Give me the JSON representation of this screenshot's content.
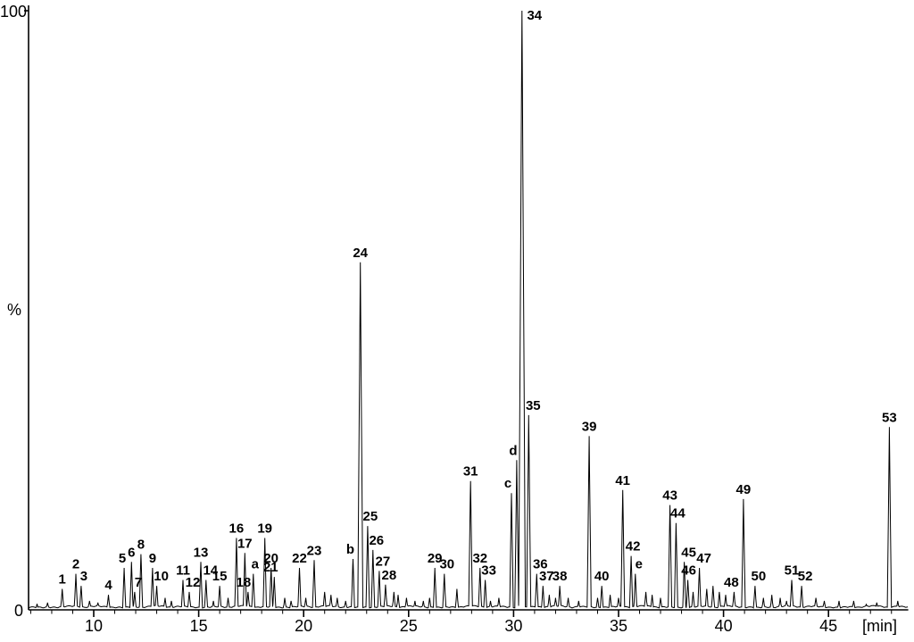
{
  "chart_data": {
    "type": "line",
    "subtype": "chromatogram",
    "title": "",
    "background_color": "#ffffff",
    "line_color": "#000000",
    "x_unit_label": "[min]",
    "x_ticks": [
      10,
      15,
      20,
      25,
      30,
      35,
      40,
      45
    ],
    "x_minor_tick_interval": 1,
    "x_range": [
      6.9,
      48.8
    ],
    "y_range": [
      0,
      100
    ],
    "y_axis_labels": {
      "max": "100",
      "unit": "%",
      "min": "0"
    },
    "legend": "none",
    "grid": "off",
    "peaks": [
      {
        "label": "1",
        "rt": 8.5,
        "h": 3.5
      },
      {
        "label": "2",
        "rt": 9.15,
        "h": 6
      },
      {
        "label": "3",
        "rt": 9.4,
        "h": 4,
        "dx": 3
      },
      {
        "label": "4",
        "rt": 10.7,
        "h": 2.5
      },
      {
        "label": "5",
        "rt": 11.45,
        "h": 7,
        "dx": -2
      },
      {
        "label": "6",
        "rt": 11.8,
        "h": 8
      },
      {
        "label": "7",
        "rt": 11.95,
        "h": 3,
        "dx": 4
      },
      {
        "label": "8",
        "rt": 12.25,
        "h": 9.3
      },
      {
        "label": "9",
        "rt": 12.8,
        "h": 7
      },
      {
        "label": "10",
        "rt": 13.0,
        "h": 4,
        "dx": 5
      },
      {
        "label": "11",
        "rt": 14.25,
        "h": 5
      },
      {
        "label": "12",
        "rt": 14.55,
        "h": 3,
        "dx": 4
      },
      {
        "label": "13",
        "rt": 15.1,
        "h": 8
      },
      {
        "label": "14",
        "rt": 15.35,
        "h": 5,
        "dx": 5
      },
      {
        "label": "15",
        "rt": 16.0,
        "h": 4
      },
      {
        "label": "16",
        "rt": 16.8,
        "h": 12
      },
      {
        "label": "17",
        "rt": 17.2,
        "h": 9.5
      },
      {
        "label": "18",
        "rt": 17.35,
        "h": 3,
        "dx": -5
      },
      {
        "label": "a",
        "rt": 17.6,
        "h": 6,
        "dx": 2
      },
      {
        "label": "19",
        "rt": 18.15,
        "h": 12
      },
      {
        "label": "20",
        "rt": 18.45,
        "h": 7
      },
      {
        "label": "21",
        "rt": 18.6,
        "h": 5.5,
        "dx": -4
      },
      {
        "label": "22",
        "rt": 19.8,
        "h": 7
      },
      {
        "label": "23",
        "rt": 20.5,
        "h": 8.3
      },
      {
        "label": "b",
        "rt": 22.35,
        "h": 8.5,
        "dx": -3
      },
      {
        "label": "24",
        "rt": 22.7,
        "h": 58
      },
      {
        "label": "25",
        "rt": 23.05,
        "h": 14,
        "dx": 3
      },
      {
        "label": "26",
        "rt": 23.3,
        "h": 10,
        "dx": 4
      },
      {
        "label": "27",
        "rt": 23.6,
        "h": 6.5,
        "dx": 4
      },
      {
        "label": "28",
        "rt": 23.9,
        "h": 4.2,
        "dx": 4
      },
      {
        "label": "29",
        "rt": 26.25,
        "h": 7
      },
      {
        "label": "30",
        "rt": 26.7,
        "h": 6,
        "dx": 3
      },
      {
        "label": "31",
        "rt": 27.95,
        "h": 21.5
      },
      {
        "label": "32",
        "rt": 28.4,
        "h": 7
      },
      {
        "label": "33",
        "rt": 28.65,
        "h": 5,
        "dx": 4
      },
      {
        "label": "c",
        "rt": 29.9,
        "h": 19.5,
        "dx": -4
      },
      {
        "label": "d",
        "rt": 30.15,
        "h": 25,
        "dx": -4
      },
      {
        "label": "34",
        "rt": 30.4,
        "h": 100,
        "dx": 14,
        "dy": 16
      },
      {
        "label": "35",
        "rt": 30.72,
        "h": 32.5,
        "dx": 5
      },
      {
        "label": "36",
        "rt": 31.1,
        "h": 6,
        "dx": 4
      },
      {
        "label": "37",
        "rt": 31.4,
        "h": 4,
        "dx": 4
      },
      {
        "label": "38",
        "rt": 32.2,
        "h": 4
      },
      {
        "label": "39",
        "rt": 33.6,
        "h": 29
      },
      {
        "label": "40",
        "rt": 34.2,
        "h": 4
      },
      {
        "label": "41",
        "rt": 35.2,
        "h": 20
      },
      {
        "label": "42",
        "rt": 35.6,
        "h": 9,
        "dx": 2
      },
      {
        "label": "e",
        "rt": 35.8,
        "h": 6,
        "dx": 4
      },
      {
        "label": "43",
        "rt": 37.45,
        "h": 17.5
      },
      {
        "label": "44",
        "rt": 37.74,
        "h": 14.5,
        "dx": 2
      },
      {
        "label": "45",
        "rt": 38.13,
        "h": 8,
        "dx": 5
      },
      {
        "label": "46",
        "rt": 38.3,
        "h": 5,
        "dx": 1
      },
      {
        "label": "47",
        "rt": 38.85,
        "h": 7,
        "dx": 5
      },
      {
        "label": "48",
        "rt": 40.5,
        "h": 3,
        "dx": -3
      },
      {
        "label": "49",
        "rt": 40.95,
        "h": 18.5
      },
      {
        "label": "50",
        "rt": 41.5,
        "h": 4,
        "dx": 4
      },
      {
        "label": "51",
        "rt": 43.25,
        "h": 5
      },
      {
        "label": "52",
        "rt": 43.72,
        "h": 4,
        "dx": 4
      },
      {
        "label": "53",
        "rt": 47.9,
        "h": 30.5
      }
    ],
    "minor_peaks": [
      [
        7.3,
        1.0
      ],
      [
        7.8,
        1.2
      ],
      [
        9.8,
        1.5
      ],
      [
        10.2,
        1.2
      ],
      [
        13.4,
        2.0
      ],
      [
        13.7,
        1.5
      ],
      [
        15.7,
        1.5
      ],
      [
        16.4,
        2.0
      ],
      [
        19.1,
        2.0
      ],
      [
        19.4,
        1.5
      ],
      [
        20.1,
        2.0
      ],
      [
        21.0,
        3.0
      ],
      [
        21.3,
        2.5
      ],
      [
        21.6,
        2.0
      ],
      [
        22.0,
        1.5
      ],
      [
        24.3,
        3.0
      ],
      [
        24.5,
        2.5
      ],
      [
        24.9,
        2.0
      ],
      [
        25.3,
        1.5
      ],
      [
        25.7,
        1.5
      ],
      [
        26.0,
        2.0
      ],
      [
        27.3,
        3.5
      ],
      [
        28.9,
        1.5
      ],
      [
        29.3,
        2.0
      ],
      [
        31.7,
        2.5
      ],
      [
        32.0,
        2.0
      ],
      [
        32.6,
        2.0
      ],
      [
        33.1,
        1.5
      ],
      [
        34.0,
        2.0
      ],
      [
        34.6,
        2.5
      ],
      [
        35.0,
        2.0
      ],
      [
        36.3,
        3.0
      ],
      [
        36.6,
        2.5
      ],
      [
        37.0,
        2.0
      ],
      [
        38.55,
        3.0
      ],
      [
        39.2,
        3.5
      ],
      [
        39.5,
        4.0
      ],
      [
        39.8,
        3.0
      ],
      [
        40.1,
        2.5
      ],
      [
        41.9,
        2.0
      ],
      [
        42.3,
        2.5
      ],
      [
        42.7,
        2.0
      ],
      [
        43.0,
        1.5
      ],
      [
        44.4,
        2.0
      ],
      [
        44.8,
        1.5
      ],
      [
        45.5,
        1.5
      ],
      [
        46.2,
        1.5
      ],
      [
        46.8,
        1.0
      ],
      [
        47.3,
        1.2
      ],
      [
        48.3,
        1.5
      ]
    ]
  }
}
